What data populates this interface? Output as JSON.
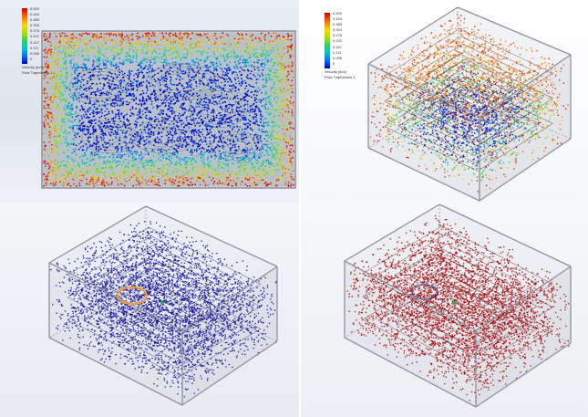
{
  "panels": [
    {
      "id": "top-left",
      "view": "top",
      "scheme": "rainbow",
      "legend": {
        "max": "0.500",
        "ticks": [
          "0.444",
          "0.389",
          "0.333",
          "0.278",
          "0.222",
          "0.167",
          "0.111",
          "0.056",
          "0"
        ],
        "parameter": "Velocity [m/s]",
        "plot": "Flow Trajectories 1"
      }
    },
    {
      "id": "top-right",
      "view": "isometric",
      "scheme": "rainbow",
      "legend": {
        "max": "0.500",
        "ticks": [
          "0.444",
          "0.389",
          "0.333",
          "0.278",
          "0.222",
          "0.167",
          "0.111",
          "0.056",
          "0"
        ],
        "parameter": "Velocity [m/s]",
        "plot": "Flow Trajectories 1"
      }
    },
    {
      "id": "bottom-left",
      "view": "isometric",
      "scheme": "blue",
      "highlight": "orange-ellipse"
    },
    {
      "id": "bottom-right",
      "view": "isometric",
      "scheme": "red"
    }
  ],
  "colors": {
    "rainbow_edge": "#c41a12",
    "blue_streamlines": "#1a1aa6",
    "red_streamlines": "#b50d0d",
    "highlight_ring": "#f29a3a",
    "box_frame": "#8d939c"
  }
}
